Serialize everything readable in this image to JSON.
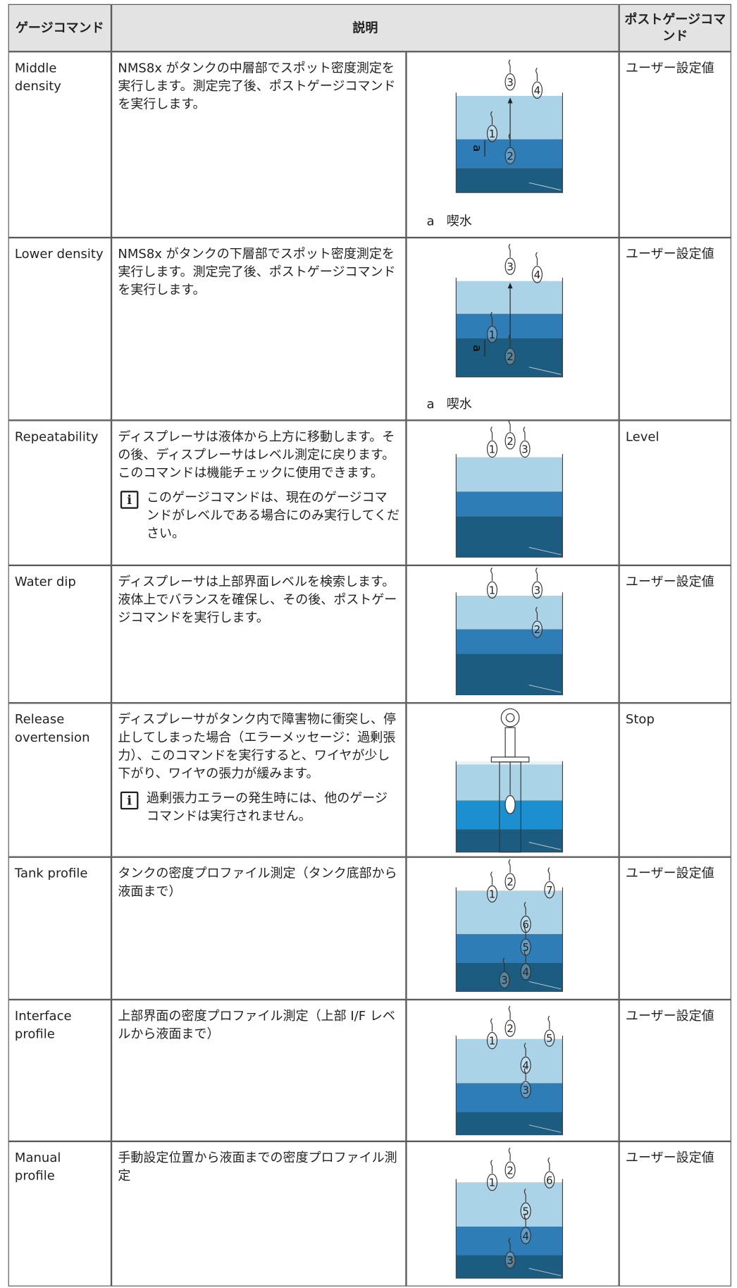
{
  "table": {
    "header": [
      "ゲージコマンド",
      "説明",
      "ポストゲージコマンド"
    ],
    "rows": [
      {
        "command": "Middle density",
        "description": "NMS8x がタンクの中層部でスポット密度測定を実行します。測定完了後、ポストゲージコマンドを実行します。",
        "figure": {
          "labels": [
            "3",
            "4",
            "1",
            "2",
            "a"
          ],
          "caption": [
            "a",
            "喫水"
          ]
        },
        "post": "ユーザー設定値"
      },
      {
        "command": "Lower density",
        "description": "NMS8x がタンクの下層部でスポット密度測定を実行します。測定完了後、ポストゲージコマンドを実行します。",
        "figure": {
          "labels": [
            "3",
            "4",
            "1",
            "2",
            "a"
          ],
          "caption": [
            "a",
            "喫水"
          ]
        },
        "post": "ユーザー設定値"
      },
      {
        "command": "Repeatability",
        "description": "ディスプレーサは液体から上方に移動します。その後、ディスプレーサはレベル測定に戻ります。このコマンドは機能チェックに使用できます。",
        "note": "このゲージコマンドは、現在のゲージコマンドがレベルである場合にのみ実行してください。",
        "figure": {
          "labels": [
            "1",
            "2",
            "3"
          ]
        },
        "post": "Level"
      },
      {
        "command": "Water dip",
        "description": "ディスプレーサは上部界面レベルを検索します。液体上でバランスを確保し、その後、ポストゲージコマンドを実行します。",
        "figure": {
          "labels": [
            "1",
            "3",
            "2"
          ]
        },
        "post": "ユーザー設定値"
      },
      {
        "command": "Release overtension",
        "description": "ディスプレーサがタンク内で障害物に衝突し、停止してしまった場合（エラーメッセージ：過剰張力）、このコマンドを実行すると、ワイヤが少し下がり、ワイヤの張力が緩みます。",
        "note": "過剰張力エラーの発生時には、他のゲージコマンドは実行されません。",
        "post": "Stop"
      },
      {
        "command": "Tank profile",
        "description": "タンクの密度プロファイル測定（タンク底部から液面まで）",
        "figure": {
          "labels": [
            "1",
            "2",
            "7",
            "6",
            "5",
            "3",
            "4"
          ]
        },
        "post": "ユーザー設定値"
      },
      {
        "command": "Interface profile",
        "description": "上部界面の密度プロファイル測定（上部 I/F レベルから液面まで）",
        "figure": {
          "labels": [
            "1",
            "2",
            "5",
            "4",
            "3"
          ]
        },
        "post": "ユーザー設定値"
      },
      {
        "command": "Manual profile",
        "description": "手動設定位置から液面までの密度プロファイル測定",
        "figure": {
          "labels": [
            "1",
            "2",
            "6",
            "5",
            "4",
            "3"
          ]
        },
        "post": "ユーザー設定値"
      }
    ]
  }
}
